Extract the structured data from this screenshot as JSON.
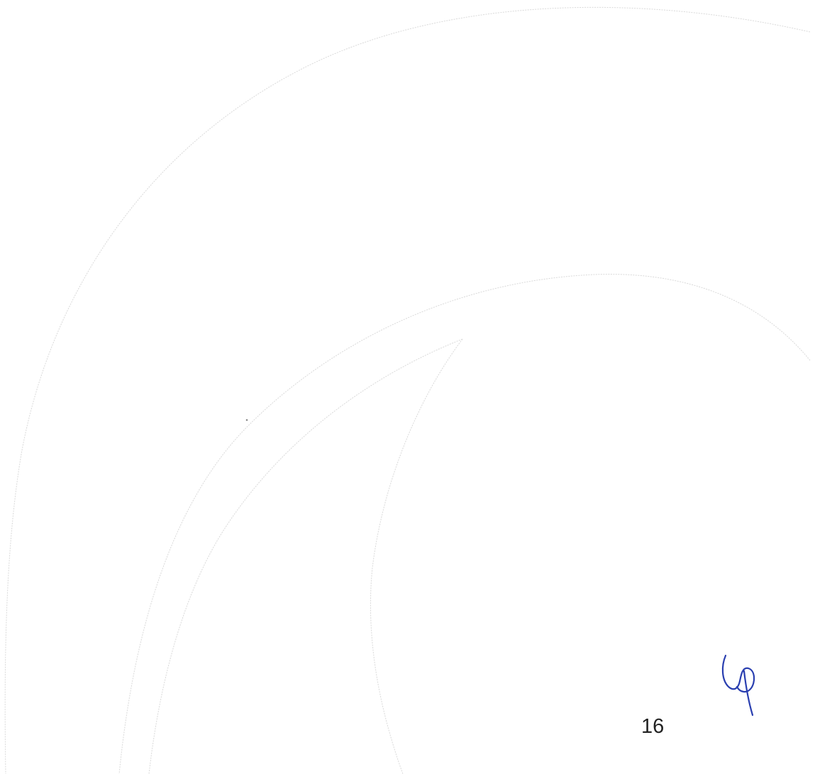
{
  "page": {
    "page_number": "16"
  },
  "colors": {
    "background": "#ffffff",
    "watermark_line": "#d9d9d9",
    "ink": "#2a3fb0"
  },
  "marks": {
    "watermark_icon": "swoosh-curves-icon",
    "initials_icon": "handwritten-initials-icon"
  }
}
